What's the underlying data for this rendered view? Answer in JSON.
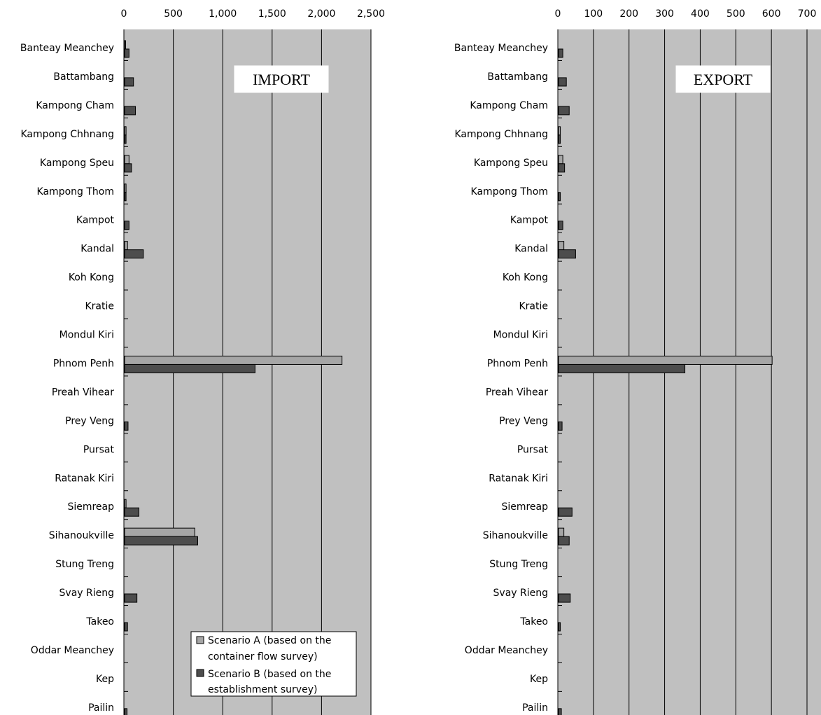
{
  "chart_data": [
    {
      "type": "bar",
      "orientation": "horizontal",
      "title": "IMPORT",
      "categories": [
        "Banteay Meanchey",
        "Battambang",
        "Kampong Cham ",
        "Kampong Chhnang",
        "Kampong Speu",
        "Kampong Thom",
        "Kampot",
        "Kandal",
        "Koh Kong",
        "Kratie",
        "Mondul Kiri",
        "Phnom Penh",
        "Preah Vihear",
        "Prey Veng",
        "Pursat",
        "Ratanak Kiri",
        "Siemreap",
        "Sihanoukville",
        "Stung Treng",
        "Svay Rieng",
        "Takeo",
        "Oddar Meanchey",
        "Kep",
        "Pailin"
      ],
      "series": [
        {
          "name": "Scenario A (based on the container flow survey)",
          "color": "#a6a6a6",
          "values": [
            3,
            0,
            0,
            15,
            45,
            15,
            0,
            30,
            0,
            0,
            0,
            2200,
            0,
            0,
            0,
            0,
            15,
            710,
            0,
            0,
            0,
            0,
            0,
            0
          ]
        },
        {
          "name": "Scenario B (based on the establishment survey)",
          "color": "#4d4d4d",
          "values": [
            45,
            90,
            110,
            15,
            70,
            15,
            45,
            190,
            0,
            0,
            0,
            1320,
            0,
            35,
            0,
            0,
            145,
            740,
            0,
            125,
            30,
            0,
            0,
            25
          ]
        }
      ],
      "xlim": [
        0,
        2500
      ],
      "ticks": [
        "0",
        "500",
        "1,000",
        "1,500",
        "2,000",
        "2,500"
      ],
      "grid": true,
      "legend_position": "bottom-right"
    },
    {
      "type": "bar",
      "orientation": "horizontal",
      "title": "EXPORT",
      "categories": [
        "Banteay Meanchey",
        "Battambang",
        "Kampong Cham ",
        "Kampong Chhnang",
        "Kampong Speu",
        "Kampong Thom",
        "Kampot",
        "Kandal",
        "Koh Kong",
        "Kratie",
        "Mondul Kiri",
        "Phnom Penh",
        "Preah Vihear",
        "Prey Veng",
        "Pursat",
        "Ratanak Kiri",
        "Siemreap",
        "Sihanoukville",
        "Stung Treng",
        "Svay Rieng",
        "Takeo",
        "Oddar Meanchey",
        "Kep",
        "Pailin"
      ],
      "series": [
        {
          "name": "Scenario A (based on the container flow survey)",
          "color": "#a6a6a6",
          "values": [
            0,
            0,
            0,
            5,
            12,
            0,
            0,
            15,
            0,
            0,
            0,
            600,
            0,
            0,
            0,
            0,
            0,
            15,
            0,
            0,
            0,
            0,
            0,
            0
          ]
        },
        {
          "name": "Scenario B (based on the establishment survey)",
          "color": "#4d4d4d",
          "values": [
            12,
            22,
            30,
            5,
            17,
            5,
            12,
            48,
            0,
            0,
            0,
            355,
            0,
            10,
            0,
            0,
            38,
            30,
            0,
            33,
            5,
            0,
            0,
            8
          ]
        }
      ],
      "xlim": [
        0,
        700
      ],
      "ticks": [
        "0",
        "100",
        "200",
        "300",
        "400",
        "500",
        "600",
        "700"
      ],
      "grid": true
    }
  ],
  "colors": {
    "plot_bg": "#c0c0c0",
    "series_a": "#a6a6a6",
    "series_b": "#4d4d4d"
  }
}
